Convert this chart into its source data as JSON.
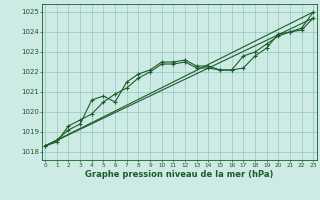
{
  "title": "Graphe pression niveau de la mer (hPa)",
  "bg_color": "#ceeae4",
  "grid_color": "#8ec9be",
  "line_color": "#1a5c2a",
  "x_ticks": [
    0,
    1,
    2,
    3,
    4,
    5,
    6,
    7,
    8,
    9,
    10,
    11,
    12,
    13,
    14,
    15,
    16,
    17,
    18,
    19,
    20,
    21,
    22,
    23
  ],
  "y_ticks": [
    1018,
    1019,
    1020,
    1021,
    1022,
    1023,
    1024,
    1025
  ],
  "ylim": [
    1017.6,
    1025.4
  ],
  "xlim": [
    -0.3,
    23.3
  ],
  "series1": [
    1018.3,
    1018.6,
    1019.1,
    1019.4,
    1020.6,
    1020.8,
    1020.5,
    1021.5,
    1021.9,
    1022.1,
    1022.5,
    1022.5,
    1022.6,
    1022.3,
    1022.3,
    1022.1,
    1022.1,
    1022.2,
    1022.8,
    1023.2,
    1023.9,
    1024.0,
    1024.2,
    1025.0
  ],
  "series2": [
    1018.3,
    1018.5,
    1019.3,
    1019.6,
    1019.9,
    1020.5,
    1020.9,
    1021.2,
    1021.7,
    1022.0,
    1022.4,
    1022.4,
    1022.5,
    1022.2,
    1022.2,
    1022.1,
    1022.1,
    1022.8,
    1023.0,
    1023.4,
    1023.8,
    1024.0,
    1024.1,
    1024.7
  ],
  "trend1_x": [
    0,
    23
  ],
  "trend1_y": [
    1018.3,
    1025.0
  ],
  "trend2_x": [
    0,
    23
  ],
  "trend2_y": [
    1018.3,
    1024.7
  ]
}
